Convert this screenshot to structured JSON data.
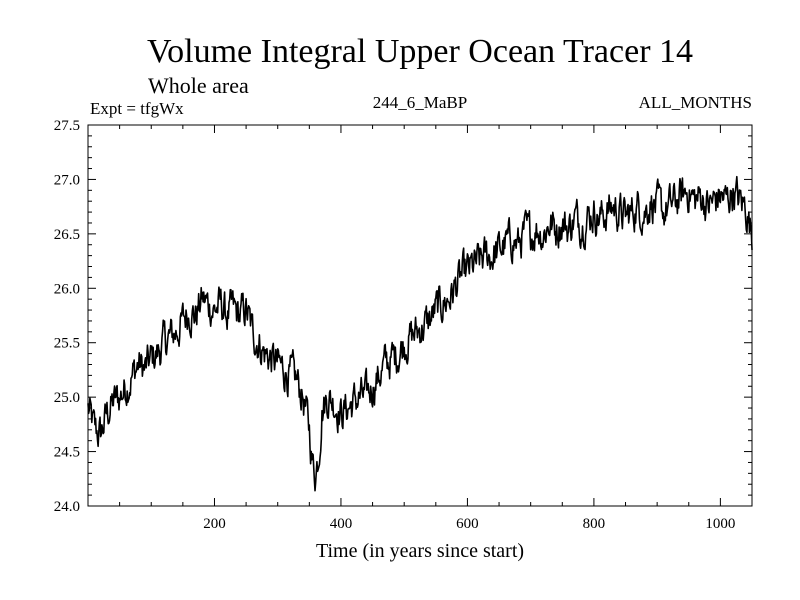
{
  "chart_data": {
    "type": "line",
    "title": "Volume Integral Upper Ocean Tracer 14",
    "subtitle": "Whole area",
    "annotations": {
      "experiment": "Expt = tfgWx",
      "run": "244_6_MaBP",
      "months": "ALL_MONTHS"
    },
    "xlabel": "Time (in years since start)",
    "ylabel": "",
    "xlim": [
      0,
      1050
    ],
    "ylim": [
      24.0,
      27.5
    ],
    "x_ticks": [
      200,
      400,
      600,
      800,
      1000
    ],
    "x_tick_labels": [
      "200",
      "400",
      "600",
      "800",
      "1000"
    ],
    "y_ticks": [
      24.0,
      24.5,
      25.0,
      25.5,
      26.0,
      26.5,
      27.0,
      27.5
    ],
    "y_tick_labels": [
      "24.0",
      "24.5",
      "25.0",
      "25.5",
      "26.0",
      "26.5",
      "27.0",
      "27.5"
    ],
    "grid": false,
    "line_color": "#000000",
    "series": [
      {
        "name": "Tracer 14",
        "x": [
          0,
          10,
          20,
          30,
          40,
          50,
          60,
          70,
          80,
          90,
          100,
          110,
          120,
          130,
          140,
          150,
          160,
          170,
          180,
          190,
          200,
          210,
          220,
          230,
          240,
          250,
          260,
          270,
          280,
          290,
          300,
          310,
          320,
          330,
          340,
          350,
          355,
          360,
          365,
          370,
          380,
          390,
          400,
          410,
          420,
          430,
          440,
          450,
          460,
          470,
          480,
          490,
          500,
          510,
          520,
          530,
          540,
          550,
          560,
          570,
          580,
          590,
          600,
          610,
          620,
          630,
          640,
          650,
          660,
          670,
          680,
          690,
          700,
          710,
          720,
          730,
          740,
          750,
          760,
          770,
          780,
          790,
          800,
          810,
          820,
          830,
          840,
          850,
          860,
          870,
          880,
          890,
          900,
          910,
          920,
          930,
          940,
          950,
          960,
          970,
          980,
          990,
          1000,
          1010,
          1020,
          1030,
          1040,
          1050
        ],
        "values": [
          24.9,
          24.7,
          24.65,
          24.85,
          24.95,
          25.0,
          25.1,
          25.2,
          25.3,
          25.25,
          25.35,
          25.4,
          25.5,
          25.55,
          25.6,
          25.7,
          25.8,
          25.75,
          25.9,
          25.85,
          25.8,
          25.85,
          25.75,
          25.8,
          25.75,
          25.8,
          25.6,
          25.5,
          25.4,
          25.35,
          25.3,
          25.25,
          25.2,
          25.15,
          25.0,
          24.7,
          24.4,
          24.3,
          24.5,
          24.9,
          25.0,
          24.95,
          24.85,
          24.9,
          24.95,
          25.0,
          25.0,
          25.1,
          25.2,
          25.3,
          25.35,
          25.4,
          25.5,
          25.55,
          25.6,
          25.65,
          25.7,
          25.8,
          25.85,
          25.9,
          26.0,
          26.1,
          26.15,
          26.2,
          26.25,
          26.3,
          26.3,
          26.35,
          26.4,
          26.45,
          26.4,
          26.5,
          26.5,
          26.55,
          26.5,
          26.6,
          26.55,
          26.6,
          26.55,
          26.65,
          26.6,
          26.65,
          26.7,
          26.65,
          26.7,
          26.75,
          26.7,
          26.65,
          26.7,
          26.75,
          26.7,
          26.8,
          26.75,
          26.7,
          26.75,
          26.8,
          26.85,
          26.9,
          26.8,
          26.85,
          26.75,
          26.8,
          26.85,
          26.8,
          26.9,
          26.8,
          26.75,
          26.5
        ]
      }
    ]
  }
}
